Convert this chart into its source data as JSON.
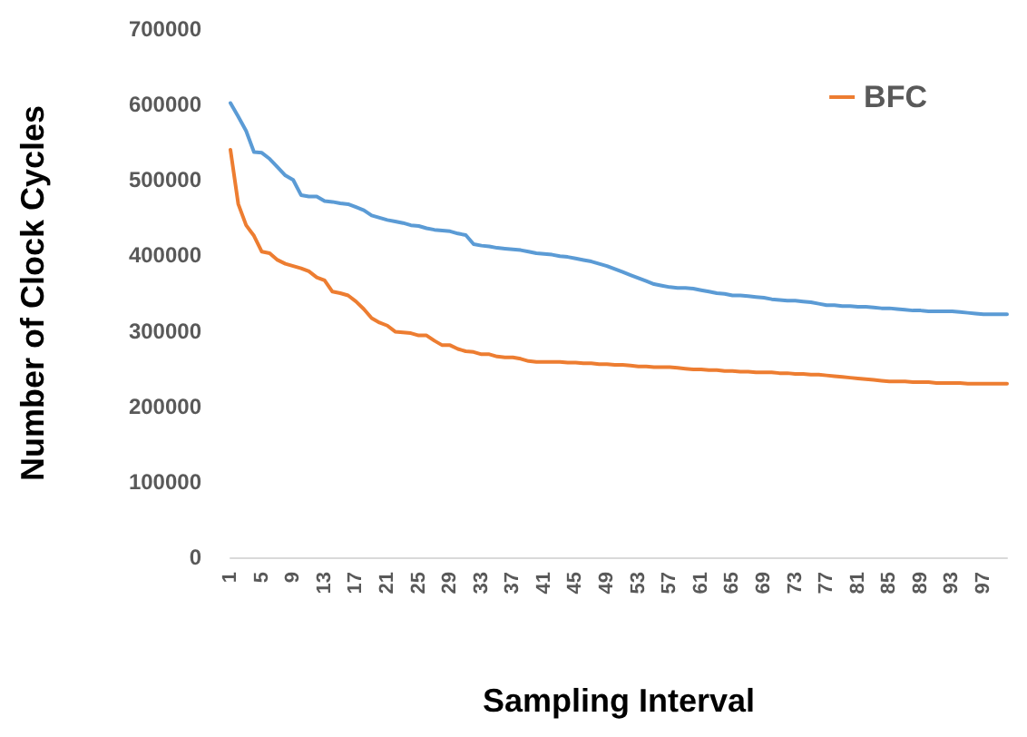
{
  "chart_data": {
    "type": "line",
    "xlabel": "Sampling Interval",
    "ylabel": "Number of Clock Cycles",
    "categories": [
      "1",
      null,
      null,
      null,
      "5",
      null,
      null,
      null,
      "9",
      null,
      null,
      null,
      "13",
      null,
      null,
      null,
      "17",
      null,
      null,
      null,
      "21",
      null,
      null,
      null,
      "25",
      null,
      null,
      null,
      "29",
      null,
      null,
      null,
      "33",
      null,
      null,
      null,
      "37",
      null,
      null,
      null,
      "41",
      null,
      null,
      null,
      "45",
      null,
      null,
      null,
      "49",
      null,
      null,
      null,
      "53",
      null,
      null,
      null,
      "57",
      null,
      null,
      null,
      "61",
      null,
      null,
      null,
      "65",
      null,
      null,
      null,
      "69",
      null,
      null,
      null,
      "73",
      null,
      null,
      null,
      "77",
      null,
      null,
      null,
      "81",
      null,
      null,
      null,
      "85",
      null,
      null,
      null,
      "89",
      null,
      null,
      null,
      "93",
      null,
      null,
      null,
      "97",
      null,
      null,
      null
    ],
    "series": [
      {
        "color": "#5b9bd5",
        "values": [
          602000,
          584000,
          565000,
          537000,
          536000,
          528000,
          517000,
          506000,
          500000,
          480000,
          478000,
          478000,
          472000,
          471000,
          469000,
          468000,
          464000,
          460000,
          453000,
          450000,
          447000,
          445000,
          443000,
          440000,
          439000,
          436000,
          434000,
          433000,
          432000,
          429000,
          427000,
          415000,
          413000,
          412000,
          410000,
          409000,
          408000,
          407000,
          405000,
          403000,
          402000,
          401000,
          399000,
          398000,
          396000,
          394000,
          392000,
          389000,
          386000,
          382000,
          378000,
          374000,
          370000,
          366000,
          362000,
          360000,
          358000,
          357000,
          357000,
          356000,
          354000,
          352000,
          350000,
          349000,
          347000,
          347000,
          346000,
          345000,
          344000,
          342000,
          341000,
          340000,
          340000,
          339000,
          338000,
          336000,
          334000,
          334000,
          333000,
          333000,
          332000,
          332000,
          331000,
          330000,
          330000,
          329000,
          328000,
          327000,
          327000,
          326000,
          326000,
          326000,
          326000,
          325000,
          324000,
          323000,
          322000,
          322000,
          322000,
          322000
        ]
      },
      {
        "name": "BFC",
        "color": "#ed7d31",
        "values": [
          540000,
          468000,
          440000,
          426000,
          405000,
          403000,
          394000,
          389000,
          386000,
          383000,
          379000,
          371000,
          367000,
          352000,
          350000,
          347000,
          339000,
          329000,
          317000,
          311000,
          307000,
          299000,
          298000,
          297000,
          294000,
          294000,
          287000,
          281000,
          281000,
          276000,
          273000,
          272000,
          269000,
          269000,
          266000,
          265000,
          265000,
          263000,
          260000,
          259000,
          259000,
          259000,
          259000,
          258000,
          258000,
          257000,
          257000,
          256000,
          256000,
          255000,
          255000,
          254000,
          253000,
          253000,
          252000,
          252000,
          252000,
          251000,
          250000,
          249000,
          249000,
          248000,
          248000,
          247000,
          247000,
          246000,
          246000,
          245000,
          245000,
          245000,
          244000,
          244000,
          243000,
          243000,
          242000,
          242000,
          241000,
          240000,
          239000,
          238000,
          237000,
          236000,
          235000,
          234000,
          233000,
          233000,
          233000,
          232000,
          232000,
          232000,
          231000,
          231000,
          231000,
          231000,
          230000,
          230000,
          230000,
          230000,
          230000,
          230000
        ]
      }
    ],
    "ylim": [
      0,
      700000
    ],
    "yticks": [
      0,
      100000,
      200000,
      300000,
      400000,
      500000,
      600000,
      700000
    ],
    "grid": false,
    "legend": "top right",
    "marker": "none",
    "line_style": "solid"
  }
}
